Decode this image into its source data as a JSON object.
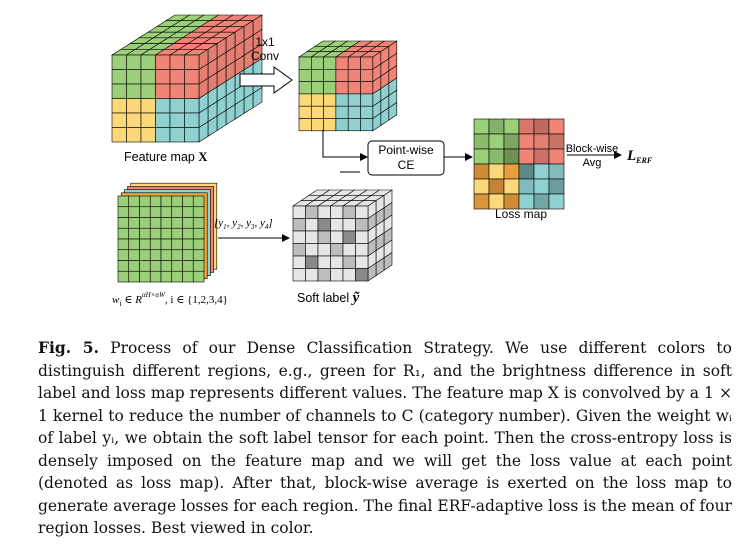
{
  "diagram": {
    "feature_map_label": "Feature map",
    "feature_map_symbol": "X",
    "conv_label_line1": "1x1",
    "conv_label_line2": "Conv",
    "ce_line1": "Point-wise",
    "ce_line2": "CE",
    "loss_map_label": "Loss map",
    "blockwise_line1": "Block-wise",
    "blockwise_line2": "Avg",
    "loss_symbol": "L",
    "loss_subscript": "ERF",
    "soft_label_label": "Soft label",
    "soft_label_symbol": "ỹ",
    "y_vector_label": "[y₁, y₂, y₃, y₄]",
    "weight_label": "wᵢ ∈ R^{αH×αW}, i ∈ {1,2,3,4}",
    "colors": {
      "green": "#9ccf79",
      "red": "#f08577",
      "yellow": "#fbd97b",
      "cyan": "#8fd1d1",
      "orange": "#f2a53f",
      "gray_light": "#e6e6e6",
      "gray_mid": "#bdbdbd",
      "gray_dark": "#8a8a8a"
    }
  },
  "caption": {
    "fig_label": "Fig. 5.",
    "text": "Process of our Dense Classification Strategy. We use different colors to distinguish different regions, e.g., green for R₁, and the brightness difference in soft label and loss map represents different values. The feature map X is convolved by a 1 × 1 kernel to reduce the number of channels to C (category number). Given the weight wᵢ of label yᵢ, we obtain the soft label tensor for each point. Then the cross-entropy loss is densely imposed on the feature map and we will get the loss value at each point (denoted as loss map). After that, block-wise average is exerted on the loss map to generate average losses for each region. The final ERF-adaptive loss is the mean of four region losses. Best viewed in color."
  }
}
